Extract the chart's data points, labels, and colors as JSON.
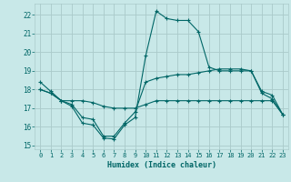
{
  "xlabel": "Humidex (Indice chaleur)",
  "xlim": [
    -0.5,
    23.5
  ],
  "ylim": [
    14.8,
    22.6
  ],
  "yticks": [
    15,
    16,
    17,
    18,
    19,
    20,
    21,
    22
  ],
  "xticks": [
    0,
    1,
    2,
    3,
    4,
    5,
    6,
    7,
    8,
    9,
    10,
    11,
    12,
    13,
    14,
    15,
    16,
    17,
    18,
    19,
    20,
    21,
    22,
    23
  ],
  "bg_color": "#c8e8e8",
  "grid_color": "#aacaca",
  "line_color": "#006666",
  "line1_x": [
    0,
    1,
    2,
    3,
    4,
    5,
    6,
    7,
    8,
    9,
    10,
    11,
    12,
    13,
    14,
    15,
    16,
    17,
    18,
    19,
    20,
    21,
    22,
    23
  ],
  "line1_y": [
    18.4,
    17.9,
    17.4,
    17.1,
    16.2,
    16.1,
    15.4,
    15.35,
    16.1,
    16.5,
    19.8,
    22.2,
    21.8,
    21.7,
    21.7,
    21.1,
    19.2,
    19.0,
    19.0,
    19.0,
    19.0,
    17.8,
    17.5,
    16.65
  ],
  "line2_x": [
    0,
    1,
    2,
    3,
    4,
    5,
    6,
    7,
    8,
    9,
    10,
    11,
    12,
    13,
    14,
    15,
    16,
    17,
    18,
    19,
    20,
    21,
    22,
    23
  ],
  "line2_y": [
    18.0,
    17.8,
    17.4,
    17.4,
    17.4,
    17.3,
    17.1,
    17.0,
    17.0,
    17.0,
    17.2,
    17.4,
    17.4,
    17.4,
    17.4,
    17.4,
    17.4,
    17.4,
    17.4,
    17.4,
    17.4,
    17.4,
    17.4,
    16.65
  ],
  "line3_x": [
    0,
    1,
    2,
    3,
    4,
    5,
    6,
    7,
    8,
    9,
    10,
    11,
    12,
    13,
    14,
    15,
    16,
    17,
    18,
    19,
    20,
    21,
    22,
    23
  ],
  "line3_y": [
    18.0,
    17.8,
    17.4,
    17.2,
    16.5,
    16.4,
    15.5,
    15.5,
    16.2,
    16.8,
    18.4,
    18.6,
    18.7,
    18.8,
    18.8,
    18.9,
    19.0,
    19.1,
    19.1,
    19.1,
    19.0,
    17.9,
    17.7,
    16.65
  ],
  "label_fontsize": 6.0,
  "tick_fontsize": 5.5
}
